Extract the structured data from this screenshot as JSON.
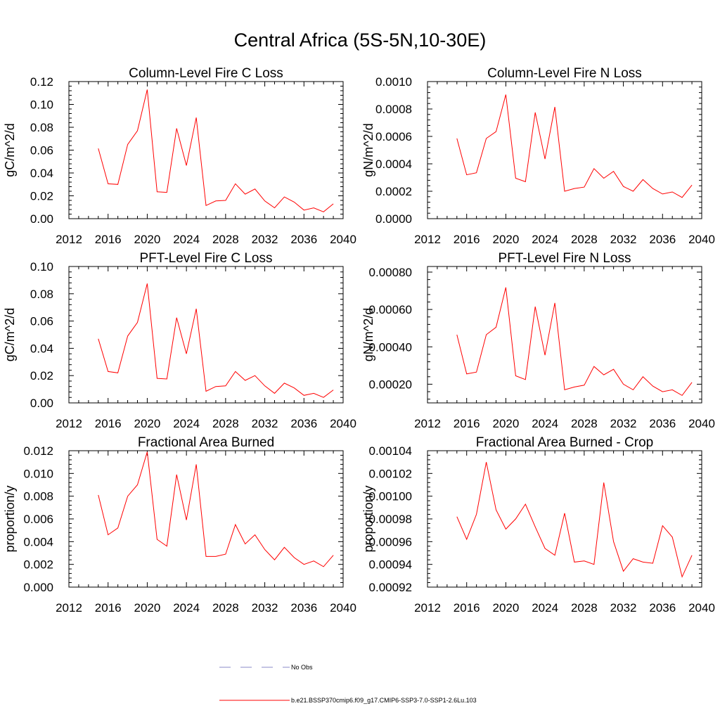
{
  "figure_title": "Central Africa (5S-5N,10-30E)",
  "colors": {
    "model": "#ff0000",
    "obs": "#8a8ac8",
    "axis": "#000000"
  },
  "legend": {
    "entries": [
      {
        "label": "No Obs",
        "style": "dashed",
        "color": "#8a8ac8"
      },
      {
        "label": "b.e21.BSSP370cmip6.f09_g17.CMIP6-SSP3-7.0-SSP1-2.6Lu.103",
        "style": "solid",
        "color": "#ff0000"
      }
    ]
  },
  "chart_data": [
    {
      "type": "line",
      "title": "Column-Level Fire C Loss",
      "ylabel": "gC/m^2/d",
      "xlim": [
        2012,
        2040
      ],
      "ylim": [
        0,
        0.12
      ],
      "x_ticks": [
        "2012",
        "2016",
        "2020",
        "2024",
        "2028",
        "2032",
        "2036",
        "2040"
      ],
      "y_ticks": [
        "0.00",
        "0.02",
        "0.04",
        "0.06",
        "0.08",
        "0.10",
        "0.12"
      ],
      "x": [
        2015,
        2016,
        2017,
        2018,
        2019,
        2020,
        2021,
        2022,
        2023,
        2024,
        2025,
        2026,
        2027,
        2028,
        2029,
        2030,
        2031,
        2032,
        2033,
        2034,
        2035,
        2036,
        2037,
        2038,
        2039
      ],
      "series": [
        {
          "name": "b.e21.BSSP370cmip6.f09_g17.CMIP6-SSP3-7.0-SSP1-2.6Lu.103",
          "values": [
            0.0615,
            0.0305,
            0.03,
            0.065,
            0.077,
            0.113,
            0.0235,
            0.023,
            0.079,
            0.0465,
            0.0885,
            0.0115,
            0.0155,
            0.016,
            0.0305,
            0.0215,
            0.026,
            0.0155,
            0.0095,
            0.019,
            0.0145,
            0.0075,
            0.0095,
            0.006,
            0.013
          ]
        }
      ]
    },
    {
      "type": "line",
      "title": "Column-Level Fire N Loss",
      "ylabel": "gN/m^2/d",
      "xlim": [
        2012,
        2040
      ],
      "ylim": [
        0,
        0.001
      ],
      "x_ticks": [
        "2012",
        "2016",
        "2020",
        "2024",
        "2028",
        "2032",
        "2036",
        "2040"
      ],
      "y_ticks": [
        "0.0000",
        "0.0002",
        "0.0004",
        "0.0006",
        "0.0008",
        "0.0010"
      ],
      "x": [
        2015,
        2016,
        2017,
        2018,
        2019,
        2020,
        2021,
        2022,
        2023,
        2024,
        2025,
        2026,
        2027,
        2028,
        2029,
        2030,
        2031,
        2032,
        2033,
        2034,
        2035,
        2036,
        2037,
        2038,
        2039
      ],
      "series": [
        {
          "name": "b.e21.BSSP370cmip6.f09_g17.CMIP6-SSP3-7.0-SSP1-2.6Lu.103",
          "values": [
            0.000585,
            0.00032,
            0.000335,
            0.000585,
            0.000635,
            0.000905,
            0.000295,
            0.00027,
            0.000775,
            0.000435,
            0.000815,
            0.0002,
            0.00022,
            0.00023,
            0.000365,
            0.000295,
            0.000345,
            0.000235,
            0.0002,
            0.000285,
            0.00022,
            0.00018,
            0.000195,
            0.000155,
            0.000245
          ]
        }
      ]
    },
    {
      "type": "line",
      "title": "PFT-Level Fire C Loss",
      "ylabel": "gC/m^2/d",
      "xlim": [
        2012,
        2040
      ],
      "ylim": [
        0,
        0.1
      ],
      "x_ticks": [
        "2012",
        "2016",
        "2020",
        "2024",
        "2028",
        "2032",
        "2036",
        "2040"
      ],
      "y_ticks": [
        "0.00",
        "0.02",
        "0.04",
        "0.06",
        "0.08",
        "0.10"
      ],
      "x": [
        2015,
        2016,
        2017,
        2018,
        2019,
        2020,
        2021,
        2022,
        2023,
        2024,
        2025,
        2026,
        2027,
        2028,
        2029,
        2030,
        2031,
        2032,
        2033,
        2034,
        2035,
        2036,
        2037,
        2038,
        2039
      ],
      "series": [
        {
          "name": "b.e21.BSSP370cmip6.f09_g17.CMIP6-SSP3-7.0-SSP1-2.6Lu.103",
          "values": [
            0.047,
            0.023,
            0.022,
            0.049,
            0.059,
            0.0875,
            0.018,
            0.0175,
            0.0625,
            0.036,
            0.069,
            0.0085,
            0.012,
            0.0125,
            0.023,
            0.0165,
            0.02,
            0.0125,
            0.007,
            0.0145,
            0.011,
            0.0055,
            0.007,
            0.004,
            0.0095
          ]
        }
      ]
    },
    {
      "type": "line",
      "title": "PFT-Level Fire N Loss",
      "ylabel": "gN/m^2/d",
      "xlim": [
        2012,
        2040
      ],
      "ylim": [
        0.0001,
        0.00083
      ],
      "x_ticks": [
        "2012",
        "2016",
        "2020",
        "2024",
        "2028",
        "2032",
        "2036",
        "2040"
      ],
      "y_ticks": [
        "0.00020",
        "0.00040",
        "0.00060",
        "0.00080"
      ],
      "x": [
        2015,
        2016,
        2017,
        2018,
        2019,
        2020,
        2021,
        2022,
        2023,
        2024,
        2025,
        2026,
        2027,
        2028,
        2029,
        2030,
        2031,
        2032,
        2033,
        2034,
        2035,
        2036,
        2037,
        2038,
        2039
      ],
      "series": [
        {
          "name": "b.e21.BSSP370cmip6.f09_g17.CMIP6-SSP3-7.0-SSP1-2.6Lu.103",
          "values": [
            0.000465,
            0.000255,
            0.000265,
            0.000465,
            0.000505,
            0.000718,
            0.000245,
            0.000225,
            0.000615,
            0.000355,
            0.000635,
            0.00017,
            0.000185,
            0.000195,
            0.000295,
            0.00025,
            0.00028,
            0.0002,
            0.00017,
            0.00024,
            0.00019,
            0.00016,
            0.00017,
            0.00014,
            0.00021
          ]
        }
      ]
    },
    {
      "type": "line",
      "title": "Fractional Area Burned",
      "ylabel": "proportion/y",
      "xlim": [
        2012,
        2040
      ],
      "ylim": [
        0,
        0.012
      ],
      "x_ticks": [
        "2012",
        "2016",
        "2020",
        "2024",
        "2028",
        "2032",
        "2036",
        "2040"
      ],
      "y_ticks": [
        "0.000",
        "0.002",
        "0.004",
        "0.006",
        "0.008",
        "0.010",
        "0.012"
      ],
      "x": [
        2015,
        2016,
        2017,
        2018,
        2019,
        2020,
        2021,
        2022,
        2023,
        2024,
        2025,
        2026,
        2027,
        2028,
        2029,
        2030,
        2031,
        2032,
        2033,
        2034,
        2035,
        2036,
        2037,
        2038,
        2039
      ],
      "series": [
        {
          "name": "b.e21.BSSP370cmip6.f09_g17.CMIP6-SSP3-7.0-SSP1-2.6Lu.103",
          "values": [
            0.0081,
            0.0046,
            0.0052,
            0.008,
            0.009,
            0.0119,
            0.0042,
            0.0036,
            0.0099,
            0.0059,
            0.0108,
            0.0027,
            0.0027,
            0.0029,
            0.0055,
            0.0038,
            0.0046,
            0.0033,
            0.0024,
            0.0035,
            0.0026,
            0.002,
            0.0023,
            0.0018,
            0.0028
          ]
        }
      ]
    },
    {
      "type": "line",
      "title": "Fractional Area Burned - Crop",
      "ylabel": "proportion/y",
      "xlim": [
        2012,
        2040
      ],
      "ylim": [
        0.00092,
        0.00104
      ],
      "x_ticks": [
        "2012",
        "2016",
        "2020",
        "2024",
        "2028",
        "2032",
        "2036",
        "2040"
      ],
      "y_ticks": [
        "0.00092",
        "0.00094",
        "0.00096",
        "0.00098",
        "0.00100",
        "0.00102",
        "0.00104"
      ],
      "x": [
        2015,
        2016,
        2017,
        2018,
        2019,
        2020,
        2021,
        2022,
        2023,
        2024,
        2025,
        2026,
        2027,
        2028,
        2029,
        2030,
        2031,
        2032,
        2033,
        2034,
        2035,
        2036,
        2037,
        2038,
        2039
      ],
      "series": [
        {
          "name": "b.e21.BSSP370cmip6.f09_g17.CMIP6-SSP3-7.0-SSP1-2.6Lu.103",
          "values": [
            0.000982,
            0.000962,
            0.000984,
            0.00103,
            0.000988,
            0.000971,
            0.00098,
            0.000993,
            0.000973,
            0.000954,
            0.000948,
            0.000985,
            0.000942,
            0.000943,
            0.00094,
            0.001012,
            0.00096,
            0.000934,
            0.000945,
            0.000942,
            0.000941,
            0.000974,
            0.000964,
            0.000929,
            0.000948
          ]
        }
      ]
    }
  ]
}
